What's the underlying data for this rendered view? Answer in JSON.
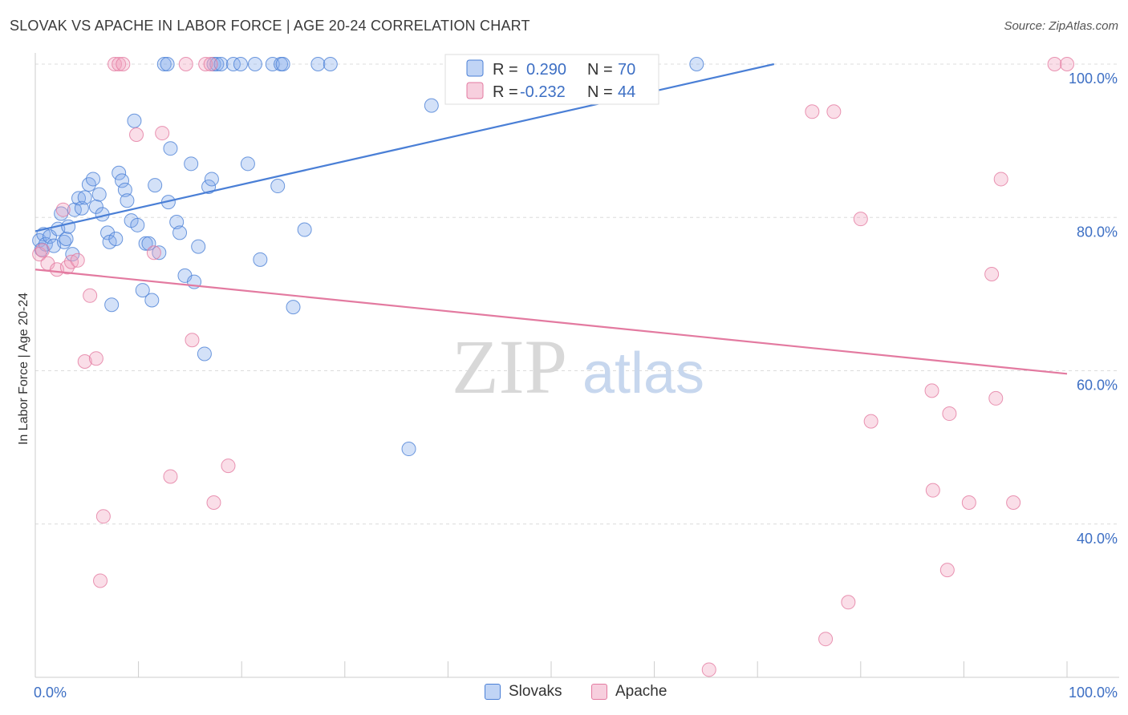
{
  "header": {
    "title": "SLOVAK VS APACHE IN LABOR FORCE | AGE 20-24 CORRELATION CHART",
    "source": "Source: ZipAtlas.com"
  },
  "watermark": {
    "zip": "ZIP",
    "atlas": "atlas"
  },
  "colors": {
    "blue": "#4a7fd6",
    "blue_fill": "rgba(130,170,235,0.35)",
    "pink": "#e37aa0",
    "pink_fill": "rgba(240,160,190,0.35)",
    "tick_text": "#3d6fc4"
  },
  "chart_data": {
    "type": "scatter",
    "title": "SLOVAK VS APACHE IN LABOR FORCE | AGE 20-24 CORRELATION CHART",
    "xlabel": "",
    "ylabel": "In Labor Force | Age 20-24",
    "xlim": [
      0,
      100
    ],
    "ylim": [
      20,
      100
    ],
    "x_tick_labels": [
      "0.0%",
      "100.0%"
    ],
    "y_ticks": [
      40,
      60,
      80,
      100
    ],
    "y_tick_labels": [
      "40.0%",
      "60.0%",
      "80.0%",
      "100.0%"
    ],
    "grid": true,
    "legend_position": "top-center",
    "legend_entries": [
      {
        "r_label": "R =",
        "r_value": "0.290",
        "n_label": "N =",
        "n_value": "70"
      },
      {
        "r_label": "R =",
        "r_value": "-0.232",
        "n_label": "N =",
        "n_value": "44"
      }
    ],
    "series": [
      {
        "name": "Slovaks",
        "color": "#4a7fd6",
        "trend": {
          "x": [
            0,
            71.6
          ],
          "y": [
            78.2,
            100.0
          ]
        },
        "points": [
          [
            0.4,
            77.0
          ],
          [
            0.6,
            75.8
          ],
          [
            0.8,
            77.8
          ],
          [
            1.0,
            76.5
          ],
          [
            1.4,
            77.5
          ],
          [
            1.8,
            76.3
          ],
          [
            2.2,
            78.5
          ],
          [
            2.5,
            80.5
          ],
          [
            2.8,
            76.8
          ],
          [
            3.0,
            77.2
          ],
          [
            3.2,
            78.8
          ],
          [
            3.6,
            75.2
          ],
          [
            3.8,
            81.0
          ],
          [
            4.2,
            82.5
          ],
          [
            4.5,
            81.2
          ],
          [
            4.8,
            82.6
          ],
          [
            5.2,
            84.3
          ],
          [
            5.6,
            85.0
          ],
          [
            5.9,
            81.4
          ],
          [
            6.2,
            83.0
          ],
          [
            6.5,
            80.4
          ],
          [
            7.0,
            78.0
          ],
          [
            7.2,
            76.8
          ],
          [
            7.4,
            68.6
          ],
          [
            7.8,
            77.2
          ],
          [
            8.1,
            85.8
          ],
          [
            8.4,
            84.8
          ],
          [
            8.7,
            83.6
          ],
          [
            8.9,
            82.2
          ],
          [
            9.3,
            79.6
          ],
          [
            9.6,
            92.6
          ],
          [
            9.9,
            79.0
          ],
          [
            10.4,
            70.5
          ],
          [
            10.7,
            76.6
          ],
          [
            11.0,
            76.6
          ],
          [
            11.3,
            69.2
          ],
          [
            11.6,
            84.2
          ],
          [
            12.0,
            75.4
          ],
          [
            12.5,
            100.0
          ],
          [
            12.8,
            100.0
          ],
          [
            12.9,
            82.0
          ],
          [
            13.1,
            89.0
          ],
          [
            13.7,
            79.4
          ],
          [
            14.0,
            78.0
          ],
          [
            14.5,
            72.4
          ],
          [
            15.1,
            87.0
          ],
          [
            15.4,
            71.6
          ],
          [
            15.8,
            76.2
          ],
          [
            16.4,
            62.2
          ],
          [
            16.8,
            84.0
          ],
          [
            17.1,
            85.0
          ],
          [
            17.3,
            100.0
          ],
          [
            17.6,
            100.0
          ],
          [
            18.0,
            100.0
          ],
          [
            19.2,
            100.0
          ],
          [
            19.9,
            100.0
          ],
          [
            20.6,
            87.0
          ],
          [
            21.3,
            100.0
          ],
          [
            21.8,
            74.5
          ],
          [
            23.0,
            100.0
          ],
          [
            23.5,
            84.1
          ],
          [
            23.8,
            100.0
          ],
          [
            24.0,
            100.0
          ],
          [
            25.0,
            68.3
          ],
          [
            26.1,
            78.4
          ],
          [
            27.4,
            100.0
          ],
          [
            28.6,
            100.0
          ],
          [
            36.2,
            49.8
          ],
          [
            38.4,
            94.6
          ],
          [
            64.1,
            100.0
          ]
        ]
      },
      {
        "name": "Apache",
        "color": "#e37aa0",
        "trend": {
          "x": [
            0,
            100
          ],
          "y": [
            73.2,
            59.6
          ]
        },
        "points": [
          [
            0.4,
            75.2
          ],
          [
            0.7,
            75.7
          ],
          [
            1.2,
            74.0
          ],
          [
            2.1,
            73.2
          ],
          [
            2.7,
            81.0
          ],
          [
            3.1,
            73.5
          ],
          [
            3.5,
            74.2
          ],
          [
            4.1,
            74.4
          ],
          [
            4.8,
            61.2
          ],
          [
            5.3,
            69.8
          ],
          [
            5.9,
            61.6
          ],
          [
            6.6,
            41.0
          ],
          [
            6.3,
            32.6
          ],
          [
            7.7,
            100.0
          ],
          [
            8.1,
            100.0
          ],
          [
            8.5,
            100.0
          ],
          [
            9.8,
            90.8
          ],
          [
            11.5,
            75.4
          ],
          [
            12.3,
            91.0
          ],
          [
            13.1,
            46.2
          ],
          [
            14.6,
            100.0
          ],
          [
            15.2,
            64.0
          ],
          [
            16.5,
            100.0
          ],
          [
            17.0,
            100.0
          ],
          [
            17.3,
            42.8
          ],
          [
            18.7,
            47.6
          ],
          [
            65.3,
            21.0
          ],
          [
            75.3,
            93.8
          ],
          [
            76.6,
            25.0
          ],
          [
            77.4,
            93.8
          ],
          [
            78.8,
            29.8
          ],
          [
            80.0,
            79.8
          ],
          [
            81.0,
            53.4
          ],
          [
            86.9,
            57.4
          ],
          [
            87.0,
            44.4
          ],
          [
            88.4,
            34.0
          ],
          [
            88.6,
            54.4
          ],
          [
            90.5,
            42.8
          ],
          [
            92.7,
            72.6
          ],
          [
            93.1,
            56.4
          ],
          [
            93.6,
            85.0
          ],
          [
            94.8,
            42.8
          ],
          [
            98.8,
            100.0
          ],
          [
            100.0,
            100.0
          ]
        ]
      }
    ]
  }
}
